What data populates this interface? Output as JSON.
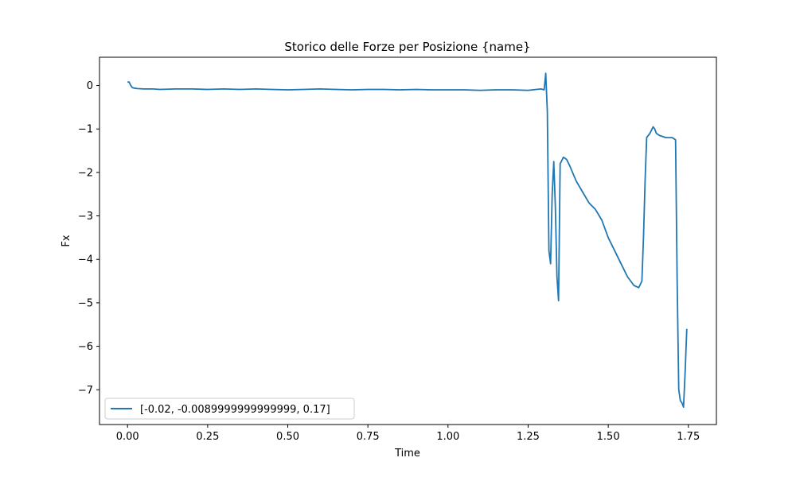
{
  "chart_data": {
    "type": "line",
    "title": "Storico delle Forze per Posizione {name}",
    "xlabel": "Time",
    "ylabel": "Fx",
    "xlim": [
      -0.0875,
      1.8375
    ],
    "ylim": [
      -7.8,
      0.65
    ],
    "xticks": [
      0.0,
      0.25,
      0.5,
      0.75,
      1.0,
      1.25,
      1.5,
      1.75
    ],
    "xtick_labels": [
      "0.00",
      "0.25",
      "0.50",
      "0.75",
      "1.00",
      "1.25",
      "1.50",
      "1.75"
    ],
    "yticks": [
      0,
      -1,
      -2,
      -3,
      -4,
      -5,
      -6,
      -7
    ],
    "ytick_labels": [
      "0",
      "−1",
      "−2",
      "−3",
      "−4",
      "−5",
      "−6",
      "−7"
    ],
    "grid": false,
    "legend_position": "lower-left",
    "series": [
      {
        "name": "[-0.02, -0.0089999999999999, 0.17]",
        "color": "#1f77b4",
        "x": [
          0.0,
          0.005,
          0.01,
          0.015,
          0.02,
          0.03,
          0.05,
          0.08,
          0.1,
          0.15,
          0.2,
          0.25,
          0.3,
          0.35,
          0.4,
          0.45,
          0.5,
          0.55,
          0.6,
          0.65,
          0.7,
          0.75,
          0.8,
          0.85,
          0.9,
          0.95,
          1.0,
          1.05,
          1.1,
          1.15,
          1.2,
          1.25,
          1.29,
          1.3,
          1.305,
          1.31,
          1.315,
          1.32,
          1.325,
          1.33,
          1.335,
          1.34,
          1.345,
          1.35,
          1.36,
          1.37,
          1.38,
          1.4,
          1.42,
          1.44,
          1.46,
          1.48,
          1.5,
          1.52,
          1.54,
          1.56,
          1.58,
          1.595,
          1.605,
          1.61,
          1.615,
          1.62,
          1.63,
          1.64,
          1.645,
          1.65,
          1.66,
          1.68,
          1.7,
          1.71,
          1.715,
          1.72,
          1.725,
          1.73,
          1.735,
          1.74,
          1.745
        ],
        "y": [
          0.08,
          0.08,
          0.0,
          -0.05,
          -0.06,
          -0.07,
          -0.08,
          -0.08,
          -0.09,
          -0.08,
          -0.08,
          -0.09,
          -0.08,
          -0.09,
          -0.08,
          -0.09,
          -0.1,
          -0.09,
          -0.08,
          -0.09,
          -0.1,
          -0.09,
          -0.09,
          -0.1,
          -0.09,
          -0.1,
          -0.1,
          -0.1,
          -0.11,
          -0.1,
          -0.1,
          -0.11,
          -0.08,
          -0.1,
          0.28,
          -0.6,
          -3.8,
          -4.1,
          -2.5,
          -1.75,
          -2.8,
          -4.4,
          -4.95,
          -1.8,
          -1.65,
          -1.7,
          -1.85,
          -2.2,
          -2.45,
          -2.7,
          -2.85,
          -3.1,
          -3.5,
          -3.8,
          -4.1,
          -4.4,
          -4.6,
          -4.65,
          -4.5,
          -3.5,
          -2.2,
          -1.2,
          -1.1,
          -0.95,
          -1.0,
          -1.1,
          -1.15,
          -1.2,
          -1.2,
          -1.25,
          -4.5,
          -7.0,
          -7.25,
          -7.3,
          -7.4,
          -6.6,
          -5.6
        ]
      }
    ]
  }
}
